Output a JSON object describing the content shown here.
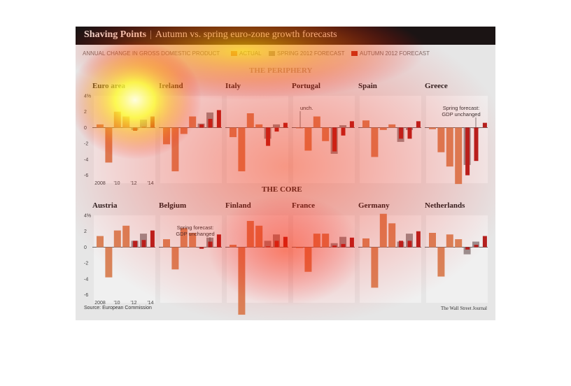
{
  "title": "Shaving Points",
  "subtitle": "Autumn vs. spring euro-zone growth forecasts",
  "legend": {
    "heading": "ANNUAL CHANGE IN GROSS DOMESTIC PRODUCT",
    "actual": "ACTUAL",
    "spring": "SPRING 2012 FORECAST",
    "autumn": "AUTUMN 2012 FORECAST"
  },
  "colors": {
    "actual": "#d9855a",
    "spring": "#9a8f8f",
    "autumn": "#b3201e",
    "title_bg": "#1b1414"
  },
  "sections": {
    "periphery": "THE PERIPHERY",
    "core": "THE CORE"
  },
  "source": "Source: European Commission",
  "credit": "The Wall Street Journal",
  "chart_data": {
    "type": "bar",
    "ylim": [
      -7,
      4
    ],
    "y_ticks": [
      "4%",
      "2",
      "0",
      "-2",
      "-4",
      "-6"
    ],
    "x_ticks": [
      "2008",
      "'10",
      "'12",
      "'14"
    ],
    "years": [
      "2008",
      "2009",
      "2010",
      "2011",
      "2012",
      "2013",
      "2014"
    ],
    "periphery": [
      {
        "country": "Euro area",
        "actual": [
          0.4,
          -4.4,
          2.0,
          1.4
        ],
        "spring": [
          -0.3,
          1.0
        ],
        "autumn": [
          -0.4,
          0.1,
          1.4
        ]
      },
      {
        "country": "Ireland",
        "actual": [
          -2.1,
          -5.5,
          -0.8,
          1.4
        ],
        "spring": [
          0.5,
          1.9
        ],
        "autumn": [
          0.4,
          1.1,
          2.2
        ]
      },
      {
        "country": "Italy",
        "actual": [
          -1.2,
          -5.5,
          1.8,
          0.4
        ],
        "spring": [
          -1.4,
          0.4
        ],
        "autumn": [
          -2.3,
          -0.5,
          0.6
        ]
      },
      {
        "country": "Portugal",
        "actual": [
          0.0,
          -2.9,
          1.4,
          -1.7
        ],
        "spring": [
          -3.3,
          0.3
        ],
        "autumn": [
          -3.0,
          -1.0,
          0.8
        ],
        "annotation": "unch."
      },
      {
        "country": "Spain",
        "actual": [
          0.9,
          -3.7,
          -0.3,
          0.4
        ],
        "spring": [
          -1.8,
          -0.3
        ],
        "autumn": [
          -1.4,
          -1.4,
          0.8
        ]
      },
      {
        "country": "Greece",
        "actual": [
          -0.2,
          -3.1,
          -4.9,
          -7.1
        ],
        "spring": [
          -4.7,
          0.0
        ],
        "autumn": [
          -6.0,
          -4.2,
          0.6
        ],
        "annotation": "Spring forecast:\nGDP unchanged"
      }
    ],
    "core": [
      {
        "country": "Austria",
        "actual": [
          1.4,
          -3.8,
          2.1,
          2.7
        ],
        "spring": [
          0.8,
          1.7
        ],
        "autumn": [
          0.8,
          0.9,
          2.1
        ]
      },
      {
        "country": "Belgium",
        "actual": [
          1.0,
          -2.8,
          2.4,
          1.8
        ],
        "spring": [
          0.0,
          1.2
        ],
        "autumn": [
          -0.2,
          0.7,
          1.6
        ],
        "annotation": "Spring forecast:\nGDP unchanged"
      },
      {
        "country": "Finland",
        "actual": [
          0.3,
          -8.5,
          3.3,
          2.7
        ],
        "spring": [
          0.8,
          1.6
        ],
        "autumn": [
          0.1,
          0.8,
          1.3
        ]
      },
      {
        "country": "France",
        "actual": [
          -0.1,
          -3.1,
          1.7,
          1.7
        ],
        "spring": [
          0.5,
          1.3
        ],
        "autumn": [
          0.2,
          0.4,
          1.2
        ]
      },
      {
        "country": "Germany",
        "actual": [
          1.1,
          -5.1,
          4.2,
          3.0
        ],
        "spring": [
          0.7,
          1.7
        ],
        "autumn": [
          0.8,
          0.8,
          2.0
        ]
      },
      {
        "country": "Netherlands",
        "actual": [
          1.8,
          -3.7,
          1.6,
          1.0
        ],
        "spring": [
          -0.9,
          0.7
        ],
        "autumn": [
          -0.3,
          0.3,
          1.4
        ]
      }
    ]
  }
}
